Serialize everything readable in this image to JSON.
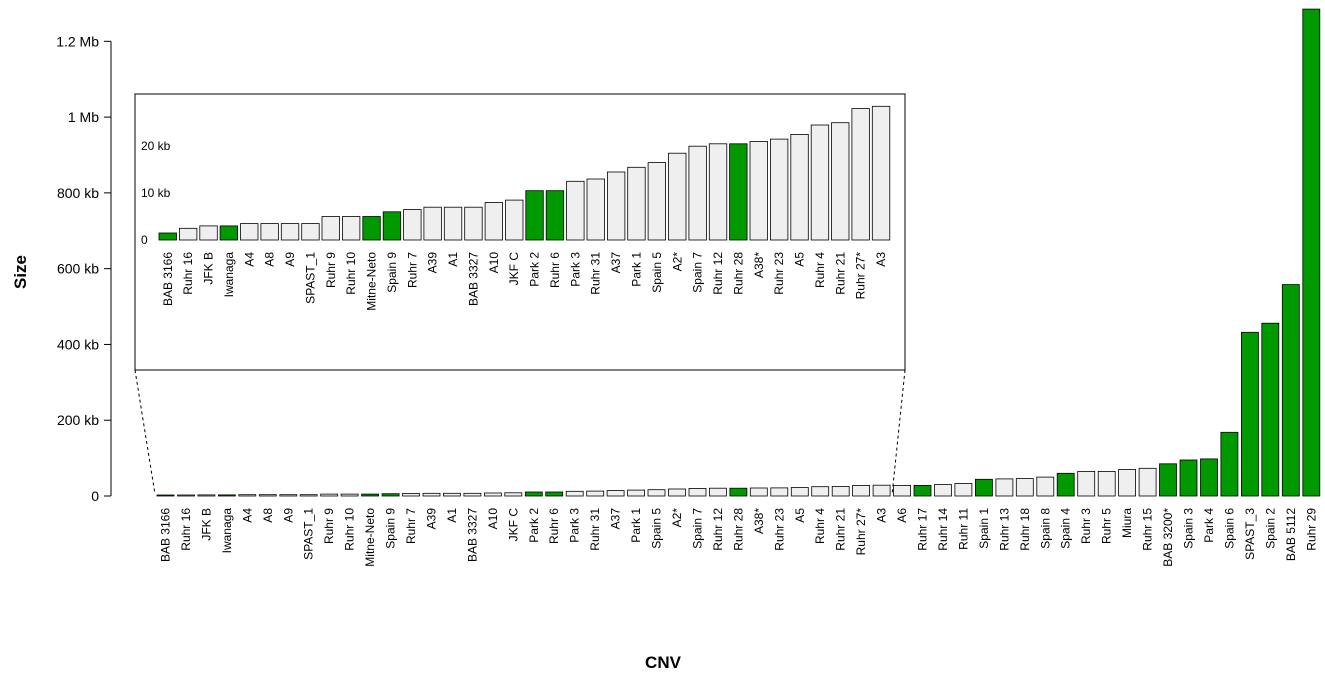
{
  "chart_data": {
    "type": "bar",
    "title": "",
    "xlabel": "CNV",
    "ylabel": "Size",
    "y_ticks": [
      "0",
      "200 kb",
      "400 kb",
      "600 kb",
      "800 kb",
      "1 Mb",
      "1.2 Mb"
    ],
    "y_tick_values": [
      0,
      200,
      400,
      600,
      800,
      1000,
      1200
    ],
    "ylim": [
      0,
      1280
    ],
    "units": "kb",
    "colors": {
      "highlight": "#009900",
      "default": "#efefef",
      "stroke": "#000000"
    },
    "categories": [
      "BAB 3166",
      "Ruhr 16",
      "JFK B",
      "Iwanaga",
      "A4",
      "A8",
      "A9",
      "SPAST_1",
      "Ruhr 9",
      "Ruhr 10",
      "Mitne-Neto",
      "Spain 9",
      "Ruhr 7",
      "A39",
      "A1",
      "BAB 3327",
      "A10",
      "JKF C",
      "Park 2",
      "Ruhr 6",
      "Park 3",
      "Ruhr 31",
      "A37",
      "Park 1",
      "Spain 5",
      "A2*",
      "Spain 7",
      "Ruhr 12",
      "Ruhr 28",
      "A38*",
      "Ruhr 23",
      "A5",
      "Ruhr 4",
      "Ruhr 21",
      "Ruhr 27*",
      "A3",
      "A6",
      "Ruhr 17",
      "Ruhr 14",
      "Ruhr 11",
      "Spain 1",
      "Ruhr 13",
      "Ruhr 18",
      "Spain 8",
      "Spain 4",
      "Ruhr 3",
      "Ruhr 5",
      "Miura",
      "Ruhr 15",
      "BAB 3200*",
      "Spain 3",
      "Park 4",
      "Spain 6",
      "SPAST_3",
      "Spain 2",
      "BAB 5112",
      "Ruhr 29"
    ],
    "values": [
      1.5,
      2.5,
      3,
      3,
      3.5,
      3.5,
      3.5,
      3.5,
      5,
      5,
      5,
      6,
      6.5,
      7,
      7,
      7,
      8,
      8.5,
      10.5,
      10.5,
      12.5,
      13,
      14.5,
      15.5,
      16.5,
      18.5,
      20,
      20.5,
      20.5,
      21,
      21.5,
      22.5,
      24.5,
      25,
      28,
      28.5,
      28,
      28,
      30,
      33,
      44,
      45,
      46,
      50,
      60,
      65,
      65,
      70,
      73,
      85,
      95,
      98,
      168,
      432,
      456,
      558,
      1285
    ],
    "highlight": [
      true,
      false,
      false,
      true,
      false,
      false,
      false,
      false,
      false,
      false,
      true,
      true,
      false,
      false,
      false,
      false,
      false,
      false,
      true,
      true,
      false,
      false,
      false,
      false,
      false,
      false,
      false,
      false,
      true,
      false,
      false,
      false,
      false,
      false,
      false,
      false,
      false,
      true,
      false,
      false,
      true,
      false,
      false,
      false,
      true,
      false,
      false,
      false,
      false,
      true,
      true,
      true,
      true,
      true,
      true,
      true,
      true
    ],
    "inset": {
      "categories_from": "BAB 3166",
      "categories_to": "A3",
      "y_ticks": [
        "0",
        "10 kb",
        "20 kb"
      ],
      "y_tick_values": [
        0,
        10,
        20
      ],
      "ylim": [
        0,
        26
      ]
    }
  }
}
